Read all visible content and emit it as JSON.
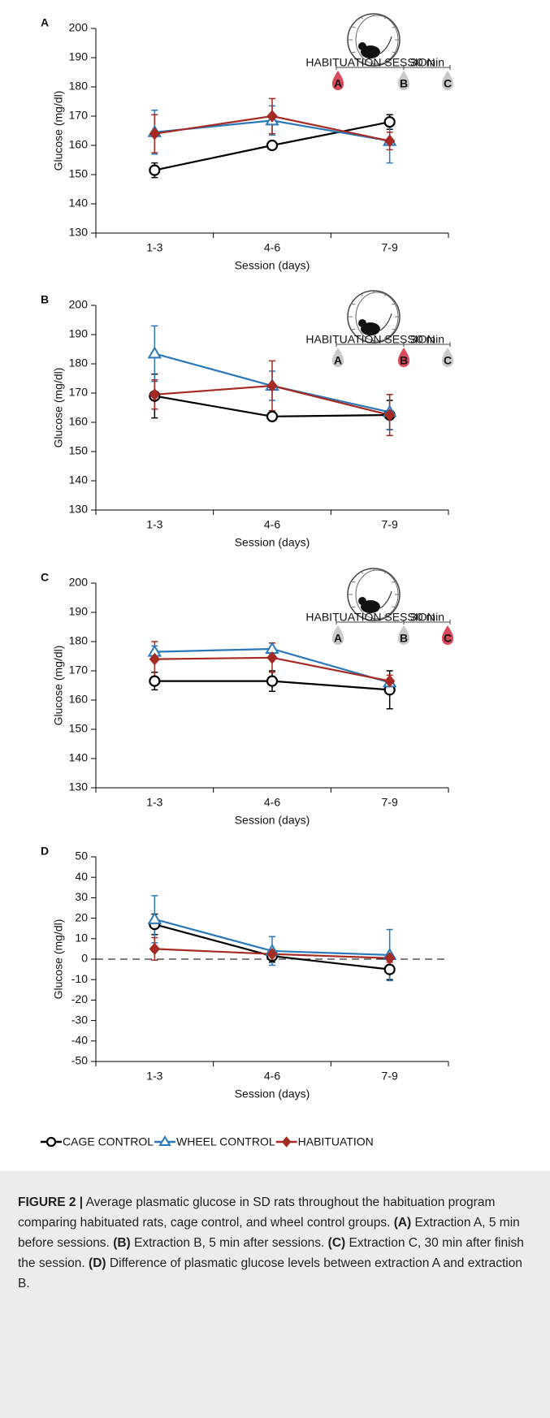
{
  "chart_data": [
    {
      "type": "line",
      "panel": "A",
      "ylabel": "Glucose (mg/dl)",
      "xlabel": "Session (days)",
      "categories": [
        "1-3",
        "4-6",
        "7-9"
      ],
      "ylim": [
        130,
        200
      ],
      "yticks": [
        130,
        140,
        150,
        160,
        170,
        180,
        190,
        200
      ],
      "inset": {
        "session_label": "HABITUATION SESSION",
        "interval_label": "30 min",
        "drops": [
          "A",
          "B",
          "C"
        ],
        "highlight": 0
      },
      "series": [
        {
          "color": "#000000",
          "marker": "circle",
          "values": [
            151.5,
            160,
            168
          ],
          "errors": [
            2.5,
            1,
            2.5
          ]
        },
        {
          "color": "#2b78b8",
          "marker": "triangle",
          "values": [
            164.5,
            168.5,
            161.5
          ],
          "errors": [
            7.5,
            5,
            7.5
          ]
        },
        {
          "color": "#a52a24",
          "marker": "diamond",
          "values": [
            164,
            170,
            161.5
          ],
          "errors": [
            6.5,
            6,
            3
          ]
        }
      ]
    },
    {
      "type": "line",
      "panel": "B",
      "ylabel": "Glucose (mg/dl)",
      "xlabel": "Session (days)",
      "categories": [
        "1-3",
        "4-6",
        "7-9"
      ],
      "ylim": [
        130,
        200
      ],
      "yticks": [
        130,
        140,
        150,
        160,
        170,
        180,
        190,
        200
      ],
      "inset": {
        "session_label": "HABITUATION SESSION",
        "interval_label": "30 min",
        "drops": [
          "A",
          "B",
          "C"
        ],
        "highlight": 1
      },
      "series": [
        {
          "color": "#000000",
          "marker": "circle",
          "values": [
            169,
            162,
            162.5
          ],
          "errors": [
            7.5,
            1,
            5
          ]
        },
        {
          "color": "#2b78b8",
          "marker": "triangle",
          "values": [
            183.5,
            172.5,
            163.5
          ],
          "errors": [
            9.5,
            5,
            6
          ]
        },
        {
          "color": "#a52a24",
          "marker": "diamond",
          "values": [
            169.5,
            172.5,
            162.5
          ],
          "errors": [
            5,
            8.5,
            7
          ]
        }
      ]
    },
    {
      "type": "line",
      "panel": "C",
      "ylabel": "Glucose (mg/dl)",
      "xlabel": "Session (days)",
      "categories": [
        "1-3",
        "4-6",
        "7-9"
      ],
      "ylim": [
        130,
        200
      ],
      "yticks": [
        130,
        140,
        150,
        160,
        170,
        180,
        190,
        200
      ],
      "inset": {
        "session_label": "HABITUATION SESSION",
        "interval_label": "30 min",
        "drops": [
          "A",
          "B",
          "C"
        ],
        "highlight": 2
      },
      "series": [
        {
          "color": "#000000",
          "marker": "circle",
          "values": [
            166.5,
            166.5,
            163.5
          ],
          "errors": [
            3,
            3.5,
            6.5
          ]
        },
        {
          "color": "#2b78b8",
          "marker": "triangle",
          "values": [
            176.5,
            177.5,
            166
          ],
          "errors": [
            2,
            2,
            1
          ]
        },
        {
          "color": "#a52a24",
          "marker": "diamond",
          "values": [
            174,
            174.5,
            166.5
          ],
          "errors": [
            6,
            5,
            2
          ]
        }
      ]
    },
    {
      "type": "line",
      "panel": "D",
      "ylabel": "Glucose (mg/dl)",
      "xlabel": "Session (days)",
      "categories": [
        "1-3",
        "4-6",
        "7-9"
      ],
      "ylim": [
        -50,
        50
      ],
      "yticks": [
        -50,
        -40,
        -30,
        -20,
        -10,
        0,
        10,
        20,
        30,
        40,
        50
      ],
      "zero_line": true,
      "series": [
        {
          "color": "#000000",
          "marker": "circle",
          "values": [
            17,
            1.5,
            -5
          ],
          "errors": [
            5,
            3,
            5
          ]
        },
        {
          "color": "#2b78b8",
          "marker": "triangle",
          "values": [
            19.5,
            4,
            2
          ],
          "errors": [
            11.5,
            7,
            12.5
          ]
        },
        {
          "color": "#a52a24",
          "marker": "diamond",
          "values": [
            5,
            2.5,
            0.5
          ],
          "errors": [
            5.5,
            2,
            2
          ]
        }
      ]
    }
  ],
  "legend": [
    {
      "name": "CAGE CONTROL",
      "color": "#000000",
      "marker": "circle"
    },
    {
      "name": "WHEEL CONTROL",
      "color": "#2b78b8",
      "marker": "triangle"
    },
    {
      "name": "HABITUATION",
      "color": "#a52a24",
      "marker": "diamond"
    }
  ],
  "caption": {
    "label": "FIGURE 2 |",
    "text": "Average plasmatic glucose in SD rats throughout the habituation program comparing habituated rats, cage control, and wheel control groups.",
    "items": [
      {
        "key": "(A)",
        "text": "Extraction A, 5 min before sessions."
      },
      {
        "key": "(B)",
        "text": "Extraction B, 5 min after sessions."
      },
      {
        "key": "(C)",
        "text": "Extraction C, 30 min after finish the session."
      },
      {
        "key": "(D)",
        "text": "Difference of plasmatic glucose levels between extraction A and extraction B."
      }
    ]
  }
}
